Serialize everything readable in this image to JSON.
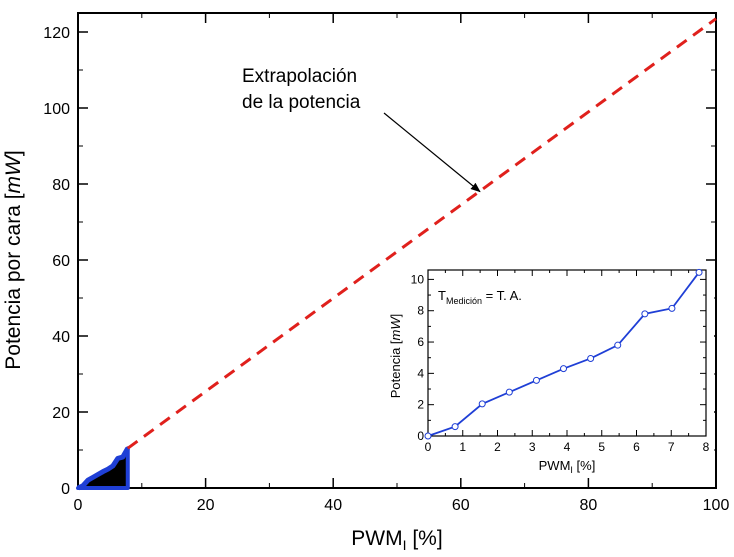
{
  "chart_data": [
    {
      "type": "line",
      "xlabel_main": "PWM",
      "xlabel_sub": "I",
      "xlabel_tail": " [%]",
      "ylabel_main": "Potencia por cara [",
      "ylabel_unit": "mW",
      "ylabel_tail": "]",
      "xlim": [
        0,
        100
      ],
      "ylim": [
        0,
        125
      ],
      "xticks": [
        0,
        20,
        40,
        60,
        80,
        100
      ],
      "yticks": [
        0,
        20,
        40,
        60,
        80,
        100,
        120
      ],
      "grid": false,
      "series": [
        {
          "name": "Medición",
          "style": "solid-blue-filled-black",
          "x": [
            0,
            0.78,
            1.56,
            2.34,
            3.12,
            3.9,
            4.68,
            5.46,
            6.24,
            7.02,
            7.8
          ],
          "y": [
            0,
            0.6,
            2.05,
            2.8,
            3.55,
            4.3,
            4.95,
            5.8,
            7.8,
            8.15,
            10.45
          ]
        },
        {
          "name": "Extrapolación de la potencia",
          "style": "dashed-red",
          "x": [
            7.8,
            100
          ],
          "y": [
            10.45,
            123.5
          ]
        }
      ],
      "annotation": {
        "line1": "Extrapolación",
        "line2": "de la potencia",
        "arrow_to": [
          63,
          78
        ]
      }
    },
    {
      "type": "line",
      "inset": true,
      "xlabel_main": "PWM",
      "xlabel_sub": "I",
      "xlabel_tail": " [%]",
      "ylabel_main": "Potencia [",
      "ylabel_unit": "mW",
      "ylabel_tail": "]",
      "xlim": [
        0,
        8
      ],
      "ylim": [
        0,
        10.6
      ],
      "xticks": [
        0,
        1,
        2,
        3,
        4,
        5,
        6,
        7,
        8
      ],
      "yticks": [
        0,
        2,
        4,
        6,
        8,
        10
      ],
      "grid": false,
      "series": [
        {
          "name": "Potencia",
          "style": "blue-line-open-circles",
          "x": [
            0,
            0.78,
            1.56,
            2.34,
            3.12,
            3.9,
            4.68,
            5.46,
            6.24,
            7.02,
            7.8
          ],
          "y": [
            0,
            0.6,
            2.05,
            2.8,
            3.55,
            4.3,
            4.95,
            5.8,
            7.8,
            8.15,
            10.45
          ]
        }
      ],
      "annotation": {
        "t_main": "T",
        "t_sub": "Medición",
        "t_tail": " = T. A."
      }
    }
  ],
  "colors": {
    "measured_line": "#1f3fd6",
    "extrapolation_line": "#e0201c",
    "fill": "#000000",
    "axis": "#000000"
  }
}
